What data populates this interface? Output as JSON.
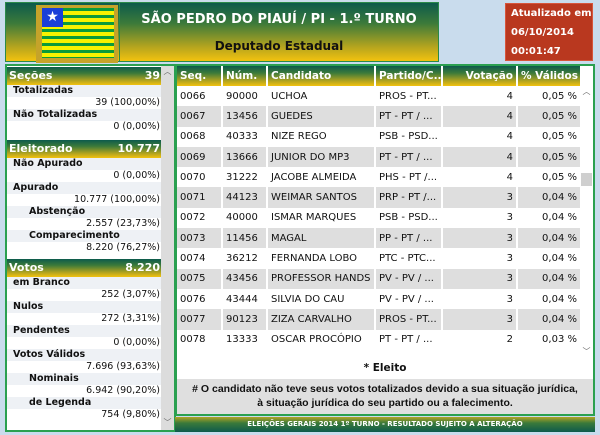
{
  "header": {
    "title": "SÃO PEDRO DO PIAUÍ / PI - 1.º TURNO",
    "subtitle": "Deputado Estadual",
    "updated_label": "Atualizado em",
    "updated_date": "06/10/2014",
    "updated_time": "00:01:47"
  },
  "sidebar": {
    "secoes": {
      "label": "Seções",
      "value": "39",
      "totalizadas_label": "Totalizadas",
      "totalizadas": "39 (100,00%)",
      "nao_totalizadas_label": "Não Totalizadas",
      "nao_totalizadas": "0 (0,00%)"
    },
    "eleitorado": {
      "label": "Eleitorado",
      "value": "10.777",
      "nao_apurado_label": "Não Apurado",
      "nao_apurado": "0 (0,00%)",
      "apurado_label": "Apurado",
      "apurado": "10.777 (100,00%)",
      "abstencao_label": "Abstenção",
      "abstencao": "2.557 (23,73%)",
      "comparecimento_label": "Comparecimento",
      "comparecimento": "8.220 (76,27%)"
    },
    "votos": {
      "label": "Votos",
      "value": "8.220",
      "branco_label": "em Branco",
      "branco": "252 (3,07%)",
      "nulos_label": "Nulos",
      "nulos": "272 (3,31%)",
      "pendentes_label": "Pendentes",
      "pendentes": "0 (0,00%)",
      "validos_label": "Votos Válidos",
      "validos": "7.696 (93,63%)",
      "nominais_label": "Nominais",
      "nominais": "6.942 (90,20%)",
      "legenda_label": "de Legenda",
      "legenda": "754 (9,80%)"
    }
  },
  "table": {
    "columns": [
      "Seq.",
      "Núm.",
      "Candidato",
      "Partido/C...",
      "Votação",
      "% Válidos"
    ],
    "rows": [
      [
        "0066",
        "90000",
        "UCHOA",
        "PROS - PT...",
        "4",
        "0,05 %"
      ],
      [
        "0067",
        "13456",
        "GUEDES",
        "PT - PT / ...",
        "4",
        "0,05 %"
      ],
      [
        "0068",
        "40333",
        "NIZE REGO",
        "PSB - PSD...",
        "4",
        "0,05 %"
      ],
      [
        "0069",
        "13666",
        "JUNIOR DO MP3",
        "PT - PT / ...",
        "4",
        "0,05 %"
      ],
      [
        "0070",
        "31222",
        "JACOBE ALMEIDA",
        "PHS - PT /...",
        "4",
        "0,05 %"
      ],
      [
        "0071",
        "44123",
        "WEIMAR SANTOS",
        "PRP - PT /...",
        "3",
        "0,04 %"
      ],
      [
        "0072",
        "40000",
        "ISMAR MARQUES",
        "PSB - PSD...",
        "3",
        "0,04 %"
      ],
      [
        "0073",
        "11456",
        "MAGAL",
        "PP - PT / ...",
        "3",
        "0,04 %"
      ],
      [
        "0074",
        "36212",
        "FERNANDA LOBO",
        "PTC - PTC...",
        "3",
        "0,04 %"
      ],
      [
        "0075",
        "43456",
        "PROFESSOR HANDS",
        "PV - PV / ...",
        "3",
        "0,04 %"
      ],
      [
        "0076",
        "43444",
        "SILVIA DO CAU",
        "PV - PV / ...",
        "3",
        "0,04 %"
      ],
      [
        "0077",
        "90123",
        "ZIZA CARVALHO",
        "PROS - PT...",
        "3",
        "0,04 %"
      ],
      [
        "0078",
        "13333",
        "OSCAR PROCÓPIO",
        "PT - PT / ...",
        "2",
        "0,03 %"
      ]
    ]
  },
  "legend": {
    "eleito": "* Eleito",
    "note_line1": "# O candidato não teve seus votos totalizados devido a sua situação jurídica,",
    "note_line2": "à situação jurídica do seu partido ou a falecimento."
  },
  "footer": "ELEIÇÕES GERAIS 2014 1º TURNO - RESULTADO SUJEITO A ALTERAÇÃO"
}
